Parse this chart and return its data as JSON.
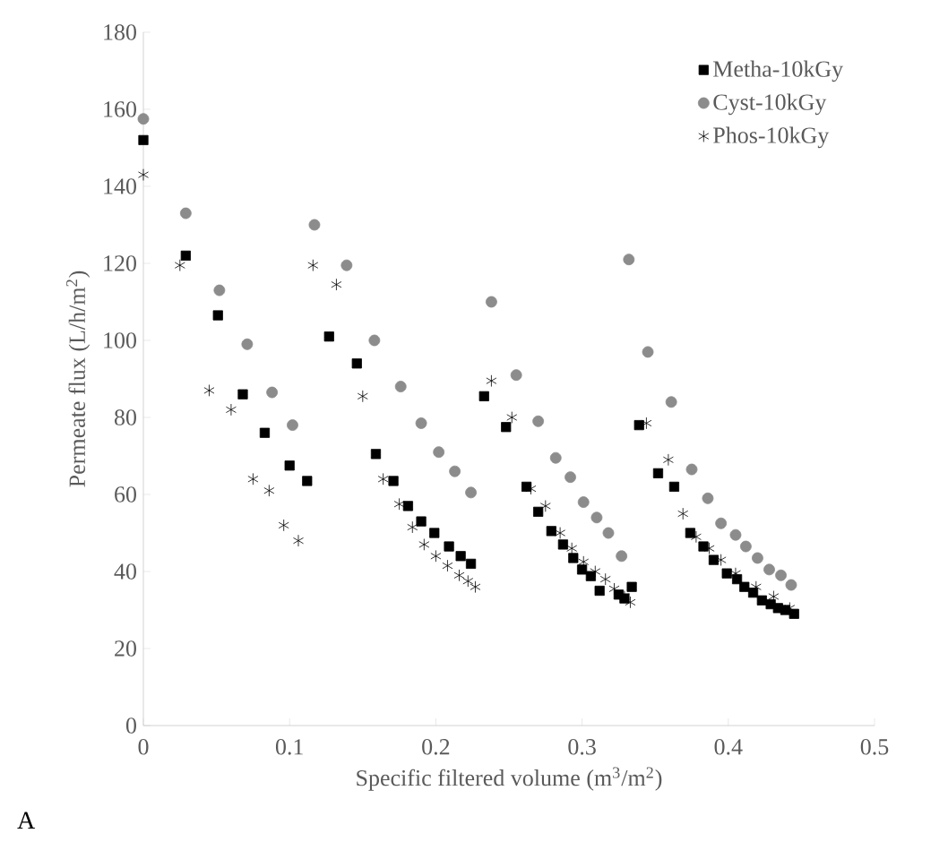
{
  "chart_data": {
    "type": "scatter",
    "xlabel": "Specific filtered volume (m$^{3}$/m$^{2}$)",
    "ylabel": "Permeate flux (L/h/m$^{2}$)",
    "annotations": [
      "A"
    ],
    "xlim": [
      0,
      0.5
    ],
    "xticks": [
      0,
      0.1,
      0.2,
      0.3,
      0.4,
      0.5
    ],
    "ylim": [
      0,
      180
    ],
    "yticks": [
      0,
      20,
      40,
      60,
      80,
      100,
      120,
      140,
      160,
      180
    ],
    "grid": false,
    "legend": "top right",
    "series": [
      {
        "name": "Metha-10kGy",
        "color": "#000000",
        "marker": "square",
        "x": [
          0,
          0.029,
          0.051,
          0.068,
          0.083,
          0.1,
          0.112,
          0.127,
          0.146,
          0.159,
          0.171,
          0.181,
          0.19,
          0.199,
          0.209,
          0.217,
          0.224,
          0.233,
          0.248,
          0.262,
          0.27,
          0.279,
          0.287,
          0.294,
          0.3,
          0.306,
          0.312,
          0.325,
          0.329,
          0.334,
          0.339,
          0.352,
          0.363,
          0.374,
          0.383,
          0.39,
          0.399,
          0.406,
          0.411,
          0.417,
          0.423,
          0.429,
          0.434,
          0.439,
          0.445
        ],
        "values": [
          152,
          122,
          106.5,
          86,
          76,
          67.5,
          63.5,
          101,
          94,
          70.5,
          63.5,
          57,
          53,
          50,
          46.5,
          44,
          42,
          85.5,
          77.5,
          62,
          55.5,
          50.5,
          47,
          43.5,
          40.5,
          38.8,
          35,
          34,
          33,
          36,
          78,
          65.5,
          62,
          50,
          46.5,
          43,
          39.5,
          38,
          36,
          34.5,
          32.5,
          31.5,
          30.5,
          30,
          29
        ]
      },
      {
        "name": "Cyst-10kGy",
        "color": "#8c8c8c",
        "marker": "circle",
        "x": [
          0,
          0.029,
          0.052,
          0.071,
          0.088,
          0.102,
          0.117,
          0.139,
          0.158,
          0.176,
          0.19,
          0.202,
          0.213,
          0.224,
          0.238,
          0.255,
          0.27,
          0.282,
          0.292,
          0.301,
          0.31,
          0.318,
          0.327,
          0.332,
          0.345,
          0.361,
          0.375,
          0.386,
          0.395,
          0.405,
          0.412,
          0.42,
          0.428,
          0.436,
          0.443
        ],
        "values": [
          157.5,
          133,
          113,
          99,
          86.5,
          78,
          130,
          119.5,
          100,
          88,
          78.5,
          71,
          66,
          60.5,
          110,
          91,
          79,
          69.5,
          64.5,
          58,
          54,
          50,
          44,
          121,
          97,
          84,
          66.5,
          59,
          52.5,
          49.5,
          46.5,
          43.5,
          40.5,
          39,
          36.5
        ]
      },
      {
        "name": "Phos-10kGy",
        "color": "#000000",
        "marker": "cross",
        "x": [
          0,
          0.025,
          0.045,
          0.06,
          0.075,
          0.086,
          0.096,
          0.106,
          0.116,
          0.132,
          0.15,
          0.164,
          0.175,
          0.184,
          0.192,
          0.2,
          0.208,
          0.216,
          0.222,
          0.227,
          0.238,
          0.252,
          0.265,
          0.275,
          0.285,
          0.293,
          0.301,
          0.309,
          0.316,
          0.322,
          0.329,
          0.333,
          0.344,
          0.359,
          0.369,
          0.378,
          0.387,
          0.395,
          0.405,
          0.419,
          0.431,
          0.442
        ],
        "values": [
          143,
          119.5,
          87,
          82,
          64,
          61,
          52,
          48,
          119.5,
          114.5,
          85.5,
          64,
          57.5,
          51.5,
          47,
          44,
          41.5,
          39,
          37.5,
          36,
          89.5,
          80,
          61.5,
          57,
          50,
          46,
          42.5,
          40,
          38,
          35.5,
          33.5,
          32,
          78.5,
          69,
          55,
          49,
          46,
          43,
          39.5,
          36,
          33.5,
          30.5
        ]
      }
    ]
  }
}
